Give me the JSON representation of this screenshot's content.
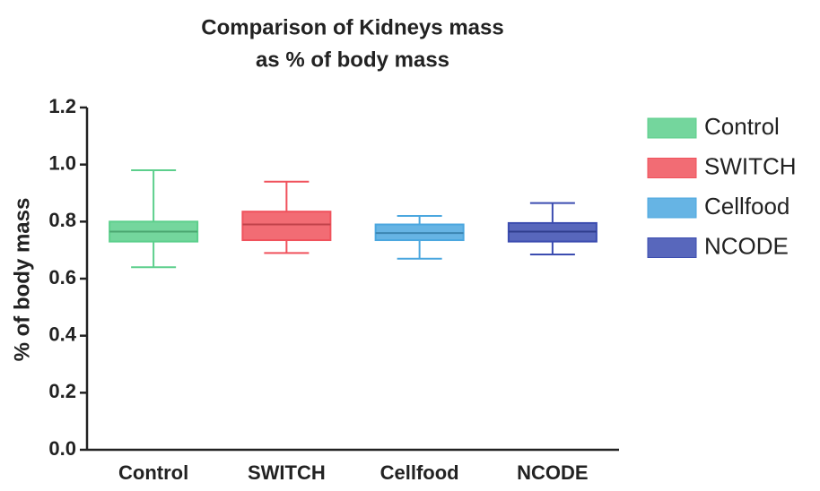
{
  "chart_data": {
    "type": "box",
    "title": [
      "Comparison of Kidneys mass",
      "as % of body mass"
    ],
    "y_label": "% of body mass",
    "categories": [
      "Control",
      "SWITCH",
      "Cellfood",
      "NCODE"
    ],
    "series": [
      {
        "name": "Control",
        "color": "#5ccf8c",
        "min": 0.64,
        "q1": 0.73,
        "median": 0.765,
        "q3": 0.8,
        "max": 0.98
      },
      {
        "name": "SWITCH",
        "color": "#f0525c",
        "min": 0.69,
        "q1": 0.735,
        "median": 0.79,
        "q3": 0.835,
        "max": 0.94
      },
      {
        "name": "Cellfood",
        "color": "#4ba7df",
        "min": 0.67,
        "q1": 0.735,
        "median": 0.76,
        "q3": 0.79,
        "max": 0.82
      },
      {
        "name": "NCODE",
        "color": "#3b4cb0",
        "min": 0.685,
        "q1": 0.73,
        "median": 0.765,
        "q3": 0.795,
        "max": 0.865
      }
    ],
    "ylim": [
      0,
      1.2
    ],
    "yticks": [
      {
        "value": 0,
        "label": "0.0"
      },
      0.2,
      0.4,
      0.6,
      0.8,
      {
        "value": 1,
        "label": "1.0"
      },
      1.2
    ],
    "legend": "right"
  }
}
